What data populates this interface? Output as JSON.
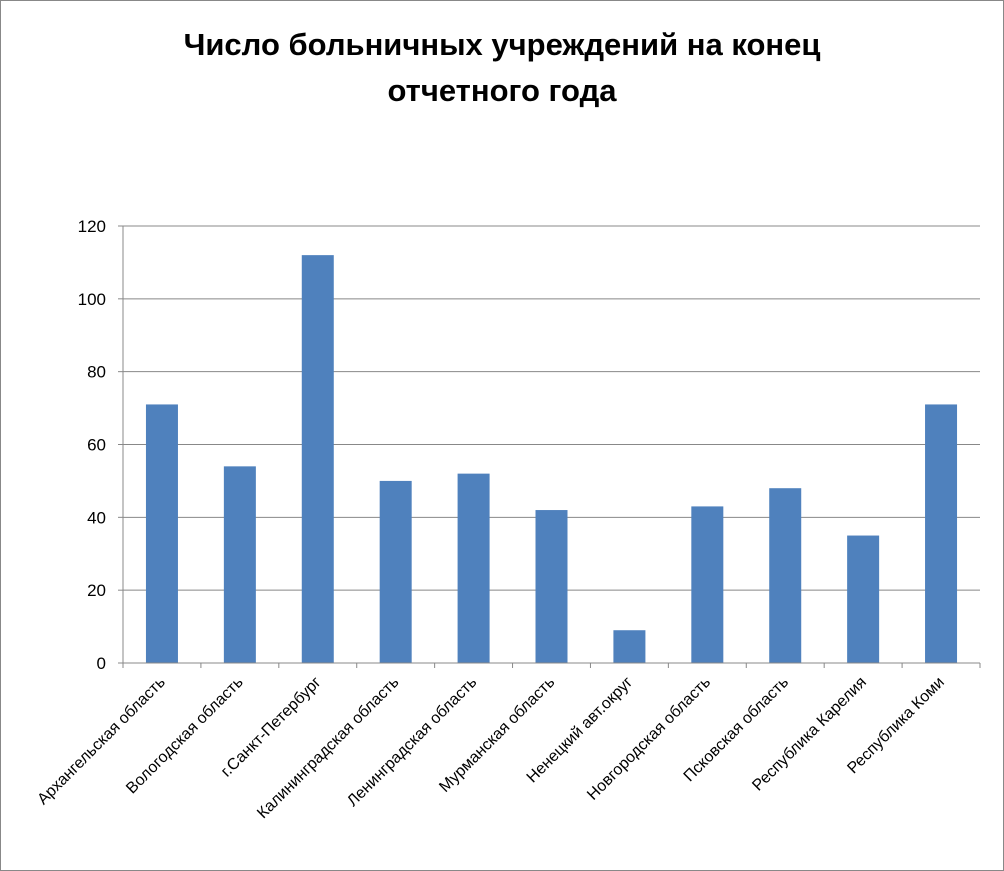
{
  "chart_data": {
    "type": "bar",
    "title_lines": [
      "Число больничных учреждений на конец",
      "отчетного года"
    ],
    "categories": [
      "Архангельская область",
      "Вологодская область",
      "г.Санкт-Петербург",
      "Калининградская область",
      "Ленинградская область",
      "Мурманская область",
      "Ненецкий авт.округ",
      "Новгородская область",
      "Псковская область",
      "Республика Карелия",
      "Республика Коми"
    ],
    "values": [
      71,
      54,
      112,
      50,
      52,
      42,
      9,
      43,
      48,
      35,
      71
    ],
    "ylim": [
      0,
      120
    ],
    "yticks": [
      "0",
      "20",
      "40",
      "60",
      "80",
      "100",
      "120"
    ],
    "grid": true,
    "legend": "none",
    "bar_color": "#4F81BD"
  }
}
